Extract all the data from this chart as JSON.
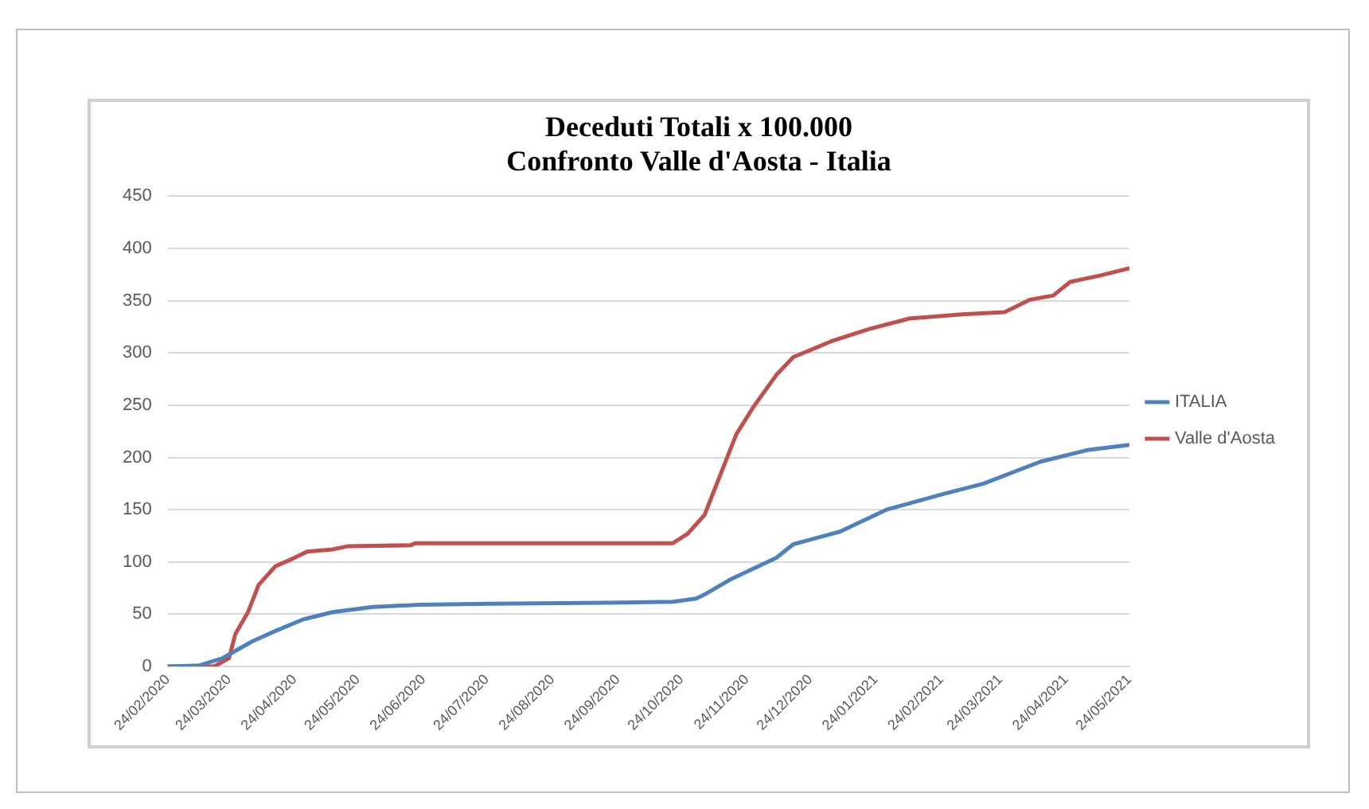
{
  "chart_data": {
    "type": "line",
    "title": "Deceduti Totali x 100.000\nConfronto Valle d'Aosta - Italia",
    "xlim": [
      "2020-02-24",
      "2021-05-24"
    ],
    "xticks": [
      {
        "value": "2020-02-24",
        "label": "24/02/2020"
      },
      {
        "value": "2020-03-24",
        "label": "24/03/2020"
      },
      {
        "value": "2020-04-24",
        "label": "24/04/2020"
      },
      {
        "value": "2020-05-24",
        "label": "24/05/2020"
      },
      {
        "value": "2020-06-24",
        "label": "24/06/2020"
      },
      {
        "value": "2020-07-24",
        "label": "24/07/2020"
      },
      {
        "value": "2020-08-24",
        "label": "24/08/2020"
      },
      {
        "value": "2020-09-24",
        "label": "24/09/2020"
      },
      {
        "value": "2020-10-24",
        "label": "24/10/2020"
      },
      {
        "value": "2020-11-24",
        "label": "24/11/2020"
      },
      {
        "value": "2020-12-24",
        "label": "24/12/2020"
      },
      {
        "value": "2021-01-24",
        "label": "24/01/2021"
      },
      {
        "value": "2021-02-24",
        "label": "24/02/2021"
      },
      {
        "value": "2021-03-24",
        "label": "24/03/2021"
      },
      {
        "value": "2021-04-24",
        "label": "24/04/2021"
      },
      {
        "value": "2021-05-24",
        "label": "24/05/2021"
      }
    ],
    "ylim": [
      0,
      450
    ],
    "yticks": [
      0,
      50,
      100,
      150,
      200,
      250,
      300,
      350,
      400,
      450
    ],
    "grid": "y",
    "legend": "right",
    "marker": "none",
    "line_style": "solid",
    "series": [
      {
        "name": "ITALIA",
        "color": "#4f81bd",
        "x": [
          "2020-02-24",
          "2020-03-10",
          "2020-03-21",
          "2020-04-04",
          "2020-04-15",
          "2020-04-28",
          "2020-05-12",
          "2020-05-31",
          "2020-06-22",
          "2020-07-25",
          "2020-09-17",
          "2020-10-20",
          "2020-10-31",
          "2020-11-05",
          "2020-11-16",
          "2020-12-08",
          "2020-12-16",
          "2021-01-07",
          "2021-01-29",
          "2021-02-25",
          "2021-03-16",
          "2021-04-12",
          "2021-05-04",
          "2021-05-24"
        ],
        "values": [
          0,
          1,
          8,
          24,
          34,
          45,
          52,
          57,
          59,
          60,
          61,
          62,
          65,
          70,
          83,
          104,
          117,
          129,
          150,
          165,
          175,
          196,
          207,
          212
        ]
      },
      {
        "name": "Valle d'Aosta",
        "color": "#c0504d",
        "x": [
          "2020-02-24",
          "2020-03-17",
          "2020-03-24",
          "2020-03-27",
          "2020-04-02",
          "2020-04-07",
          "2020-04-15",
          "2020-04-23",
          "2020-04-30",
          "2020-05-12",
          "2020-05-19",
          "2020-06-18",
          "2020-06-20",
          "2020-10-20",
          "2020-10-27",
          "2020-11-04",
          "2020-11-11",
          "2020-11-19",
          "2020-11-27",
          "2020-12-08",
          "2020-12-16",
          "2021-01-04",
          "2021-01-21",
          "2021-02-09",
          "2021-03-06",
          "2021-03-26",
          "2021-04-07",
          "2021-04-18",
          "2021-04-26",
          "2021-05-10",
          "2021-05-24"
        ],
        "values": [
          0,
          0,
          8,
          31,
          52,
          78,
          96,
          103,
          110,
          112,
          115,
          116,
          118,
          118,
          127,
          145,
          181,
          222,
          248,
          279,
          296,
          312,
          323,
          333,
          337,
          339,
          351,
          355,
          368,
          374,
          381
        ]
      }
    ]
  }
}
